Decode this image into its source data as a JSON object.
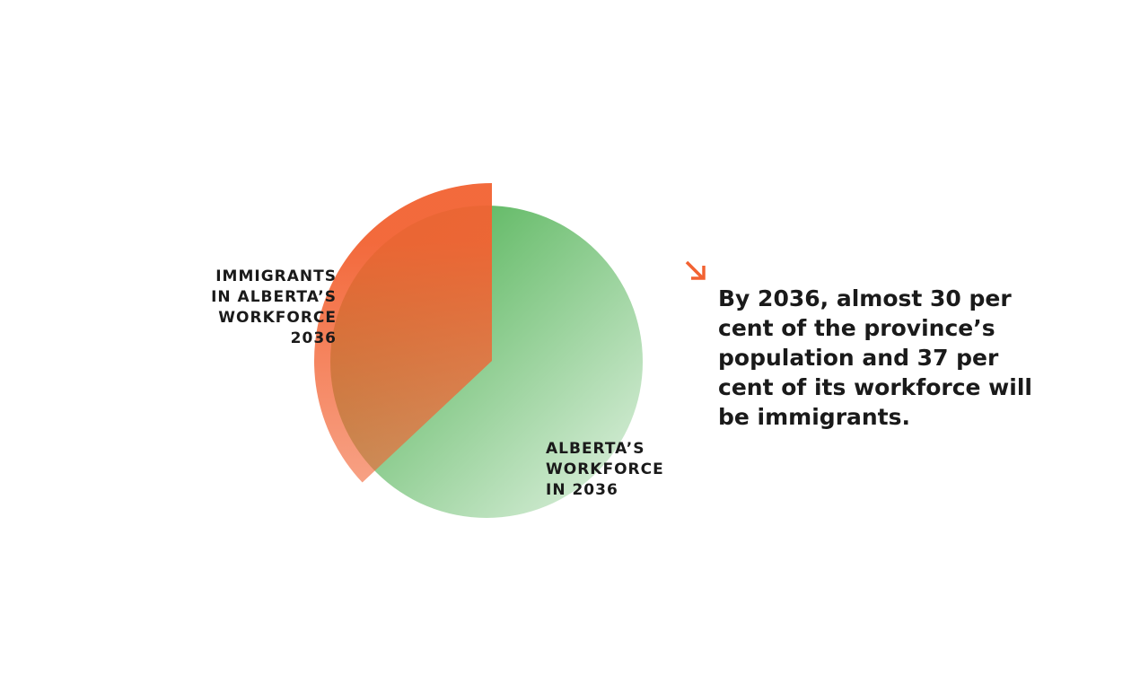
{
  "chart_data": {
    "type": "pie",
    "slices": [
      {
        "name": [
          "ALBERTA’S",
          "WORKFORCE",
          "IN 2036"
        ],
        "value": 100,
        "color": "#4cb050"
      },
      {
        "name": [
          "IMMIGRANTS",
          "IN ALBERTA’S",
          "WORKFORCE",
          "2036"
        ],
        "value": 37,
        "color": "#f26232"
      }
    ],
    "annotation": "By 2036, almost 30 per cent of the province’s population and 37 per cent of its workforce will be immigrants."
  }
}
